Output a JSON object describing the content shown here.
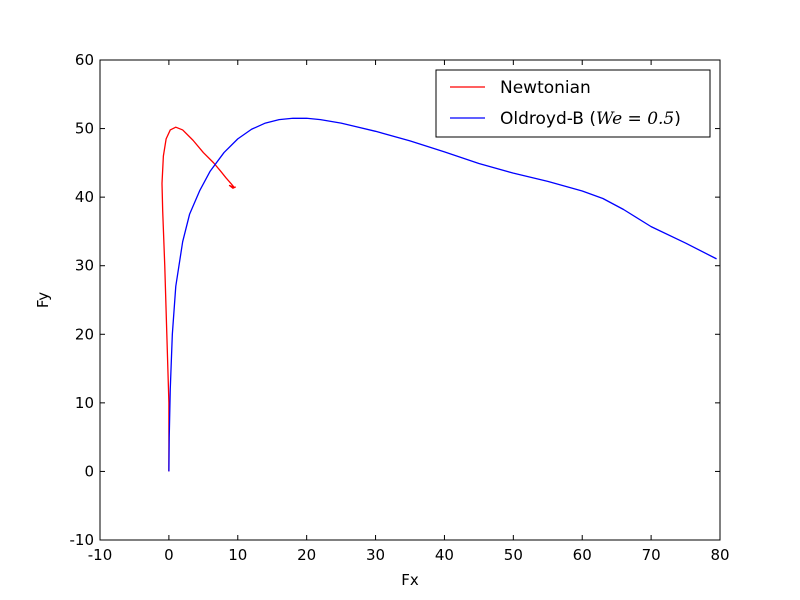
{
  "chart_data": {
    "type": "line",
    "title": "",
    "xlabel": "Fx",
    "ylabel": "Fy",
    "xlim": [
      -10,
      80
    ],
    "ylim": [
      -10,
      60
    ],
    "xticks": [
      -10,
      0,
      10,
      20,
      30,
      40,
      50,
      60,
      70,
      80
    ],
    "yticks": [
      -10,
      0,
      10,
      20,
      30,
      40,
      50,
      60
    ],
    "grid": false,
    "legend_position": "top-right",
    "series": [
      {
        "name": "Newtonian",
        "color": "#ff0000",
        "x": [
          0,
          0,
          -0.3,
          -0.6,
          -0.9,
          -1.0,
          -0.8,
          -0.4,
          0.2,
          1.0,
          2.0,
          3.5,
          5.0,
          6.5,
          7.5,
          8.3,
          9.0,
          9.5,
          8.8,
          9.3,
          9.7
        ],
        "y": [
          0,
          10,
          20,
          30,
          38,
          42,
          46,
          48.5,
          49.8,
          50.2,
          49.8,
          48.3,
          46.5,
          45.0,
          43.8,
          42.8,
          42.0,
          41.4,
          41.7,
          41.3,
          41.5
        ]
      },
      {
        "name_prefix": "Oldroyd-B (",
        "name_math": "We = 0.5",
        "name_suffix": ")",
        "color": "#0000ff",
        "x": [
          0,
          0.05,
          0.2,
          0.5,
          1.0,
          2.0,
          3.0,
          4.5,
          6.0,
          8.0,
          10.0,
          12.0,
          14.0,
          16.0,
          18.0,
          19.0,
          20.0,
          22.0,
          25.0,
          30.0,
          35.0,
          40.0,
          45.0,
          50.0,
          55.0,
          60.0,
          63.0,
          66.0,
          70.0,
          75.0,
          79.5
        ],
        "y": [
          0,
          5,
          12,
          20,
          27,
          33.5,
          37.5,
          41.0,
          43.8,
          46.5,
          48.5,
          49.9,
          50.8,
          51.3,
          51.5,
          51.5,
          51.5,
          51.3,
          50.8,
          49.6,
          48.2,
          46.6,
          44.9,
          43.5,
          42.3,
          40.9,
          39.8,
          38.2,
          35.7,
          33.3,
          31.0
        ]
      }
    ]
  }
}
